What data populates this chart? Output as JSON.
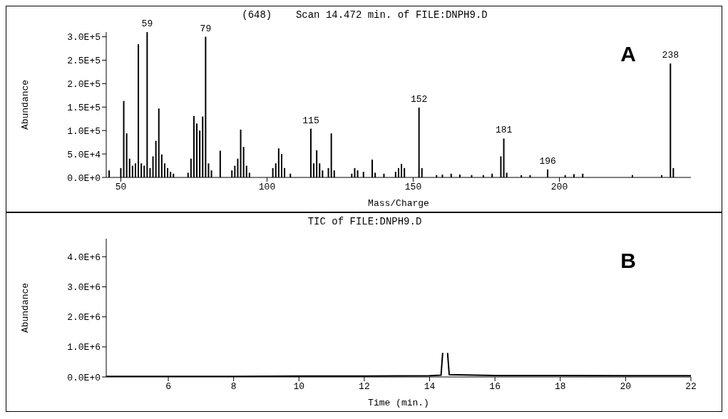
{
  "chart_data": [
    {
      "type": "bar",
      "title": "(648)    Scan 14.472 min. of FILE:DNPH9.D",
      "xlabel": "Mass/Charge",
      "ylabel": "Abundance",
      "color": "#000000",
      "x": [
        46,
        50,
        51,
        52,
        53,
        54,
        55,
        56,
        57,
        58,
        59,
        60,
        61,
        62,
        63,
        64,
        65,
        66,
        67,
        68,
        73,
        74,
        75,
        76,
        77,
        78,
        79,
        80,
        81,
        84,
        88,
        89,
        90,
        91,
        92,
        93,
        94,
        102,
        103,
        104,
        105,
        106,
        108,
        115,
        116,
        117,
        118,
        119,
        121,
        122,
        123,
        129,
        130,
        131,
        133,
        136,
        137,
        140,
        144,
        145,
        146,
        147,
        152,
        153,
        158,
        160,
        163,
        166,
        170,
        174,
        177,
        180,
        181,
        182,
        187,
        190,
        196,
        202,
        205,
        208,
        225,
        235,
        238,
        239
      ],
      "values": [
        15000,
        20000,
        163000,
        94000,
        40000,
        25000,
        30000,
        284000,
        30000,
        25000,
        310000,
        20000,
        45000,
        78000,
        147000,
        49000,
        30000,
        20000,
        12000,
        8000,
        10000,
        40000,
        131000,
        115000,
        100000,
        130000,
        300000,
        30000,
        15000,
        57000,
        15000,
        25000,
        40000,
        102000,
        65000,
        25000,
        10000,
        20000,
        30000,
        62000,
        50000,
        20000,
        8000,
        104000,
        30000,
        58000,
        30000,
        15000,
        20000,
        94000,
        15000,
        8000,
        20000,
        15000,
        12000,
        38000,
        10000,
        8000,
        12000,
        20000,
        29000,
        20000,
        149000,
        20000,
        5000,
        6000,
        8000,
        6000,
        5000,
        5000,
        8000,
        45000,
        83000,
        10000,
        5000,
        5000,
        17000,
        5000,
        7000,
        8000,
        5000,
        5000,
        243000,
        20000
      ],
      "xlim": [
        45,
        245
      ],
      "xticks": [
        50,
        100,
        150,
        200
      ],
      "ylim": [
        0,
        310000
      ],
      "yticks": [
        {
          "value": 0,
          "label": "0.0E+0"
        },
        {
          "value": 50000,
          "label": "5.0E+4"
        },
        {
          "value": 100000,
          "label": "1.0E+5"
        },
        {
          "value": 150000,
          "label": "1.5E+5"
        },
        {
          "value": 200000,
          "label": "2.0E+5"
        },
        {
          "value": 250000,
          "label": "2.5E+5"
        },
        {
          "value": 300000,
          "label": "3.0E+5"
        }
      ],
      "annotations": [
        "A",
        {
          "text": "59",
          "x": 59,
          "y": 310000
        },
        {
          "text": "79",
          "x": 79,
          "y": 300000
        },
        {
          "text": "115",
          "x": 115,
          "y": 104000
        },
        {
          "text": "152",
          "x": 152,
          "y": 149000
        },
        {
          "text": "181",
          "x": 181,
          "y": 83000
        },
        {
          "text": "196",
          "x": 196,
          "y": 17000
        },
        {
          "text": "238",
          "x": 238,
          "y": 243000
        }
      ]
    },
    {
      "type": "line",
      "title": "TIC of FILE:DNPH9.D",
      "xlabel": "Time (min.)",
      "ylabel": "Abundance",
      "color": "#000000",
      "x": [
        4.1,
        6,
        8,
        10,
        12,
        14,
        14.35,
        14.4,
        14.45,
        14.5,
        14.55,
        14.6,
        16,
        18,
        20,
        22
      ],
      "values": [
        20000,
        20000,
        20000,
        30000,
        30000,
        40000,
        60000,
        800000,
        null,
        null,
        800000,
        80000,
        50000,
        50000,
        40000,
        40000
      ],
      "xlim": [
        4.1,
        22
      ],
      "xticks": [
        6,
        8,
        10,
        12,
        14,
        16,
        18,
        20,
        22
      ],
      "ylim": [
        0,
        4600000
      ],
      "yticks": [
        {
          "value": 0,
          "label": "0.0E+0"
        },
        {
          "value": 1000000,
          "label": "1.0E+6"
        },
        {
          "value": 2000000,
          "label": "2.0E+6"
        },
        {
          "value": 3000000,
          "label": "3.0E+6"
        },
        {
          "value": 4000000,
          "label": "4.0E+6"
        }
      ],
      "annotations": [
        "B"
      ]
    }
  ]
}
